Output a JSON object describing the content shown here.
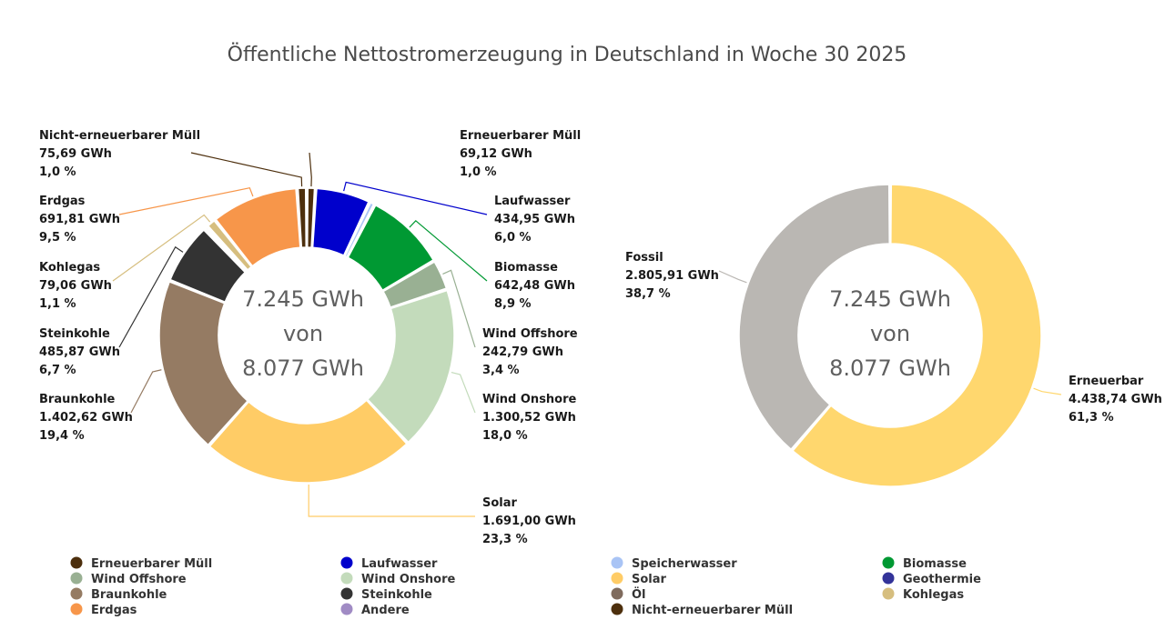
{
  "chart_data": [
    {
      "type": "pie",
      "variant": "donut",
      "title": "Öffentliche Nettostromerzeugung in Deutschland in Woche 30 2025",
      "center_text": [
        "7.245 GWh",
        "von",
        "8.077 GWh"
      ],
      "unit": "GWh",
      "slices": [
        {
          "name": "Erneuerbarer Müll",
          "value": 69.12,
          "value_label": "69,12 GWh",
          "percent_label": "1,0 %",
          "color": "#4d2f0d",
          "labeled": true
        },
        {
          "name": "Laufwasser",
          "value": 434.95,
          "value_label": "434,95 GWh",
          "percent_label": "6,0 %",
          "color": "#0000cc",
          "labeled": true
        },
        {
          "name": "Speicherwasser",
          "value": 43.6,
          "value_label": "",
          "percent_label": "",
          "color": "#a9c4f5",
          "labeled": false
        },
        {
          "name": "Biomasse",
          "value": 642.48,
          "value_label": "642,48 GWh",
          "percent_label": "8,9 %",
          "color": "#009933",
          "labeled": true
        },
        {
          "name": "Wind Offshore",
          "value": 242.79,
          "value_label": "242,79 GWh",
          "percent_label": "3,4 %",
          "color": "#99b093",
          "labeled": true
        },
        {
          "name": "Wind Onshore",
          "value": 1300.52,
          "value_label": "1.300,52 GWh",
          "percent_label": "18,0 %",
          "color": "#c3dbbb",
          "labeled": true
        },
        {
          "name": "Solar",
          "value": 1691.0,
          "value_label": "1.691,00 GWh",
          "percent_label": "23,3 %",
          "color": "#ffcc66",
          "labeled": true
        },
        {
          "name": "Braunkohle",
          "value": 1402.62,
          "value_label": "1.402,62 GWh",
          "percent_label": "19,4 %",
          "color": "#957b63",
          "labeled": true
        },
        {
          "name": "Steinkohle",
          "value": 485.87,
          "value_label": "485,87 GWh",
          "percent_label": "6,7 %",
          "color": "#333333",
          "labeled": true
        },
        {
          "name": "Öl",
          "value": 29.0,
          "value_label": "",
          "percent_label": "",
          "color": "#7f6b5d",
          "labeled": false
        },
        {
          "name": "Kohlegas",
          "value": 79.06,
          "value_label": "79,06 GWh",
          "percent_label": "1,1 %",
          "color": "#d6be7f",
          "labeled": true
        },
        {
          "name": "Erdgas",
          "value": 691.81,
          "value_label": "691,81 GWh",
          "percent_label": "9,5 %",
          "color": "#f7964a",
          "labeled": true
        },
        {
          "name": "Nicht-erneuerbarer Müll",
          "value": 75.69,
          "value_label": "75,69 GWh",
          "percent_label": "1,0 %",
          "color": "#4d2f0d",
          "labeled": true
        }
      ]
    },
    {
      "type": "pie",
      "variant": "donut",
      "title": "",
      "center_text": [
        "7.245 GWh",
        "von",
        "8.077 GWh"
      ],
      "unit": "GWh",
      "slices": [
        {
          "name": "Erneuerbar",
          "value": 4438.74,
          "value_label": "4.438,74 GWh",
          "percent_label": "61,3 %",
          "color": "#ffd76e",
          "labeled": true
        },
        {
          "name": "Fossil",
          "value": 2805.91,
          "value_label": "2.805,91 GWh",
          "percent_label": "38,7 %",
          "color": "#bab7b3",
          "labeled": true
        }
      ]
    }
  ],
  "legend": [
    {
      "name": "Erneuerbarer Müll",
      "color": "#4d2f0d"
    },
    {
      "name": "Laufwasser",
      "color": "#0000cc"
    },
    {
      "name": "Speicherwasser",
      "color": "#a9c4f5"
    },
    {
      "name": "Biomasse",
      "color": "#009933"
    },
    {
      "name": "Wind Offshore",
      "color": "#99b093"
    },
    {
      "name": "Wind Onshore",
      "color": "#c3dbbb"
    },
    {
      "name": "Solar",
      "color": "#ffcc66"
    },
    {
      "name": "Geothermie",
      "color": "#333399"
    },
    {
      "name": "Braunkohle",
      "color": "#957b63"
    },
    {
      "name": "Steinkohle",
      "color": "#333333"
    },
    {
      "name": "Öl",
      "color": "#7f6b5d"
    },
    {
      "name": "Kohlegas",
      "color": "#d6be7f"
    },
    {
      "name": "Erdgas",
      "color": "#f7964a"
    },
    {
      "name": "Andere",
      "color": "#a08bc4"
    },
    {
      "name": "Nicht-erneuerbarer Müll",
      "color": "#4d2f0d"
    }
  ]
}
